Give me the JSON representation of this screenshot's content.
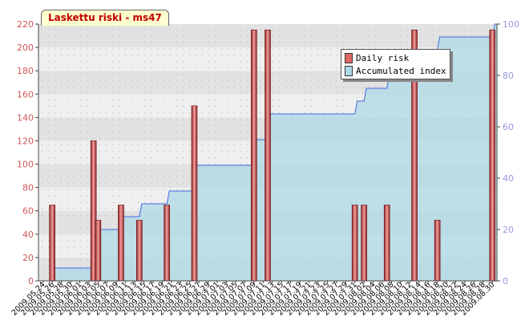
{
  "chart_data": {
    "type": "bar",
    "title": "Laskettu riski - ms47",
    "x": [
      "2009.05.24",
      "2009.05.26",
      "2009.05.28",
      "2009.05.30",
      "2009.06.01",
      "2009.06.03",
      "2009.06.05",
      "2009.06.07",
      "2009.06.09",
      "2009.06.11",
      "2009.06.13",
      "2009.06.15",
      "2009.06.17",
      "2009.06.19",
      "2009.06.21",
      "2009.06.23",
      "2009.06.25",
      "2009.06.27",
      "2009.06.29",
      "2009.07.01",
      "2009.07.03",
      "2009.07.05",
      "2009.07.07",
      "2009.07.09",
      "2009.07.11",
      "2009.07.13",
      "2009.07.15",
      "2009.07.17",
      "2009.07.19",
      "2009.07.21",
      "2009.07.23",
      "2009.07.25",
      "2009.07.27",
      "2009.07.29",
      "2009.07.31",
      "2009.08.02",
      "2009.08.04",
      "2009.08.06",
      "2009.08.08",
      "2009.08.10",
      "2009.08.12",
      "2009.08.14",
      "2009.08.16",
      "2009.08.18",
      "2009.08.20",
      "2009.08.22",
      "2009.08.24",
      "2009.08.26",
      "2009.08.28",
      "2009.08.30"
    ],
    "y_left": {
      "min": 0,
      "max": 220,
      "ticks": [
        0,
        20,
        40,
        60,
        80,
        100,
        120,
        140,
        160,
        180,
        200,
        220
      ]
    },
    "y_right": {
      "min": 0,
      "max": 100,
      "ticks": [
        0,
        20,
        40,
        60,
        80,
        100
      ]
    },
    "grid": true,
    "legend_position": "top-right",
    "series": [
      {
        "name": "Daily risk",
        "type": "bar",
        "axis": "left",
        "color": "#e06666",
        "points": [
          {
            "x": "2009.05.26",
            "y": 65
          },
          {
            "x": "2009.06.04",
            "y": 120
          },
          {
            "x": "2009.06.05",
            "y": 52
          },
          {
            "x": "2009.06.10",
            "y": 65
          },
          {
            "x": "2009.06.14",
            "y": 52
          },
          {
            "x": "2009.06.20",
            "y": 65
          },
          {
            "x": "2009.06.26",
            "y": 150
          },
          {
            "x": "2009.07.09",
            "y": 215
          },
          {
            "x": "2009.07.12",
            "y": 215
          },
          {
            "x": "2009.07.31",
            "y": 65
          },
          {
            "x": "2009.08.02",
            "y": 65
          },
          {
            "x": "2009.08.07",
            "y": 65
          },
          {
            "x": "2009.08.13",
            "y": 215
          },
          {
            "x": "2009.08.18",
            "y": 52
          },
          {
            "x": "2009.08.30",
            "y": 215
          }
        ]
      },
      {
        "name": "Accumulated index",
        "type": "area",
        "axis": "right",
        "color": "#add8e6",
        "line_color": "#4169e1",
        "points": [
          {
            "x": "2009.05.26",
            "y": 5
          },
          {
            "x": "2009.06.04",
            "y": 13
          },
          {
            "x": "2009.06.05",
            "y": 20
          },
          {
            "x": "2009.06.10",
            "y": 25
          },
          {
            "x": "2009.06.14",
            "y": 30
          },
          {
            "x": "2009.06.20",
            "y": 35
          },
          {
            "x": "2009.06.26",
            "y": 45
          },
          {
            "x": "2009.07.09",
            "y": 55
          },
          {
            "x": "2009.07.12",
            "y": 65
          },
          {
            "x": "2009.07.31",
            "y": 70
          },
          {
            "x": "2009.08.02",
            "y": 75
          },
          {
            "x": "2009.08.07",
            "y": 80
          },
          {
            "x": "2009.08.13",
            "y": 90
          },
          {
            "x": "2009.08.18",
            "y": 95
          },
          {
            "x": "2009.08.30",
            "y": 100
          }
        ]
      }
    ]
  }
}
